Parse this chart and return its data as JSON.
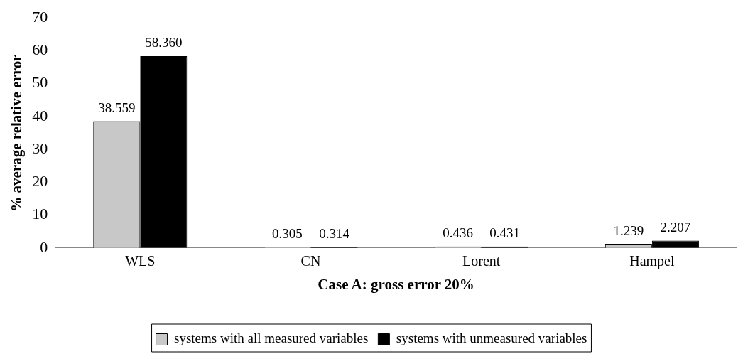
{
  "chart_data": {
    "type": "bar",
    "xlabel": "Case A: gross error 20%",
    "ylabel": "% average relative error",
    "categories": [
      "WLS",
      "CN",
      "Lorent",
      "Hampel"
    ],
    "series": [
      {
        "name": "systems with all measured variables",
        "color": "#c8c8c8",
        "values": [
          38.559,
          0.305,
          0.436,
          1.239
        ],
        "value_labels": [
          "38.559",
          "0.305",
          "0.436",
          "1.239"
        ]
      },
      {
        "name": "systems with unmeasured variables",
        "color": "#000000",
        "values": [
          58.36,
          0.314,
          0.431,
          2.207
        ],
        "value_labels": [
          "58.360",
          "0.314",
          "0.431",
          "2.207"
        ]
      }
    ],
    "ylim": [
      0,
      70
    ],
    "yticks": [
      0,
      10,
      20,
      30,
      40,
      50,
      60,
      70
    ],
    "grid": false,
    "legend": "bottom"
  }
}
